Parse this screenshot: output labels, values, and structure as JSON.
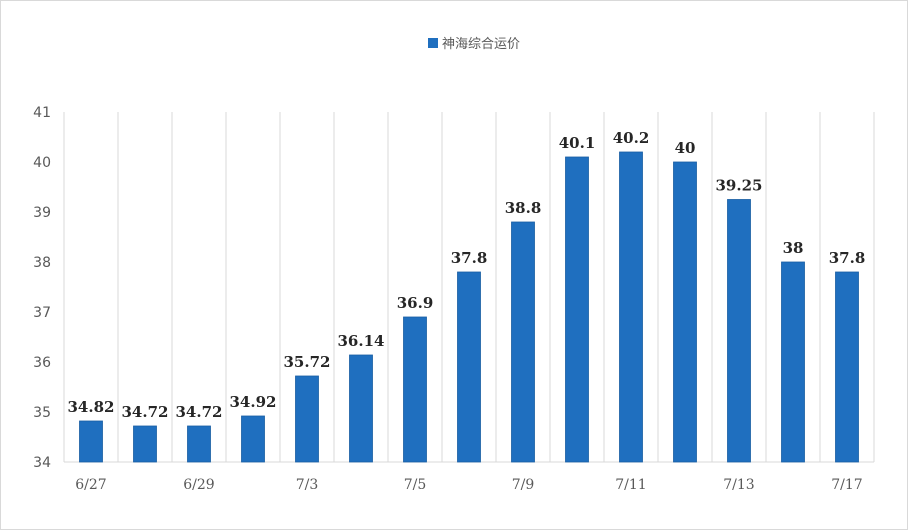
{
  "chart_data": {
    "type": "bar",
    "series": [
      {
        "name": "神海综合运价",
        "color": "#1f6fbf",
        "values": [
          34.82,
          34.72,
          34.72,
          34.92,
          35.72,
          36.14,
          36.9,
          37.8,
          38.8,
          40.1,
          40.2,
          40,
          39.25,
          38,
          37.8
        ]
      }
    ],
    "data_labels": [
      "34.82",
      "34.72",
      "34.72",
      "34.92",
      "35.72",
      "36.14",
      "36.9",
      "37.8",
      "38.8",
      "40.1",
      "40.2",
      "40",
      "39.25",
      "38",
      "37.8"
    ],
    "categories": [
      "6/27",
      "",
      "6/29",
      "",
      "7/3",
      "",
      "7/5",
      "",
      "7/9",
      "",
      "7/11",
      "",
      "7/13",
      "",
      "7/17"
    ],
    "ylim": [
      34,
      41
    ],
    "yticks": [
      34,
      35,
      36,
      37,
      38,
      39,
      40,
      41
    ],
    "grid": "vertical",
    "legend": "top-center",
    "title": "",
    "xlabel": "",
    "ylabel": ""
  }
}
